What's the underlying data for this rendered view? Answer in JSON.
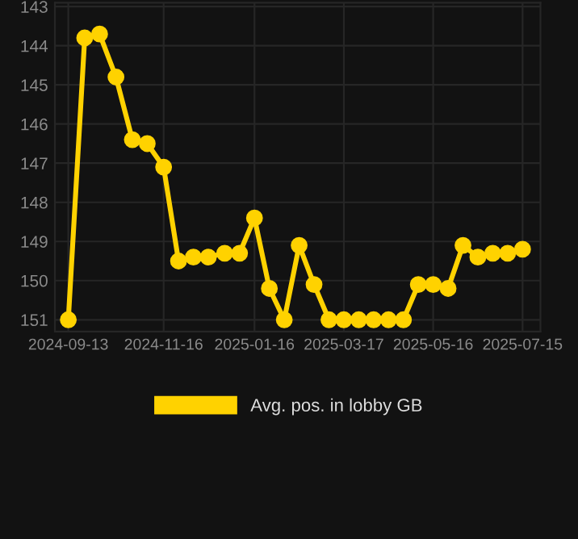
{
  "chart_data": {
    "type": "line",
    "x": [
      "2024-09-13",
      "2024-09-24",
      "2024-10-04",
      "2024-10-15",
      "2024-10-26",
      "2024-11-05",
      "2024-11-16",
      "2024-11-26",
      "2024-12-06",
      "2024-12-16",
      "2024-12-27",
      "2025-01-06",
      "2025-01-16",
      "2025-01-26",
      "2025-02-05",
      "2025-02-15",
      "2025-02-25",
      "2025-03-07",
      "2025-03-17",
      "2025-03-27",
      "2025-04-06",
      "2025-04-16",
      "2025-04-26",
      "2025-05-06",
      "2025-05-16",
      "2025-05-26",
      "2025-06-05",
      "2025-06-15",
      "2025-06-25",
      "2025-07-05",
      "2025-07-15"
    ],
    "series": [
      {
        "name": "Avg. pos. in lobby GB",
        "color": "#ffd200",
        "values": [
          151,
          143.8,
          143.7,
          144.8,
          146.4,
          146.5,
          147.1,
          149.5,
          149.4,
          149.4,
          149.3,
          149.3,
          148.4,
          150.2,
          151,
          149.1,
          150.1,
          151,
          151,
          151,
          151,
          151,
          151,
          150.1,
          150.1,
          150.2,
          149.1,
          149.4,
          149.3,
          149.3,
          149.2
        ]
      }
    ],
    "ylim": [
      151.3,
      142.9
    ],
    "yticks": [
      143,
      144,
      145,
      146,
      147,
      148,
      149,
      150,
      151
    ],
    "xlim": [
      "2024-09-04",
      "2025-07-27"
    ],
    "xticks": [
      {
        "value": "2024-09-13",
        "label": "2024-09-13"
      },
      {
        "value": "2024-11-16",
        "label": "2024-11-16"
      },
      {
        "value": "2025-01-16",
        "label": "2025-01-16"
      },
      {
        "value": "2025-03-17",
        "label": "2025-03-17"
      },
      {
        "value": "2025-05-16",
        "label": "2025-05-16"
      },
      {
        "value": "2025-07-15",
        "label": "2025-07-15"
      }
    ],
    "grid": true,
    "legend": "bottom",
    "marker": "circle",
    "line_style": "solid"
  }
}
